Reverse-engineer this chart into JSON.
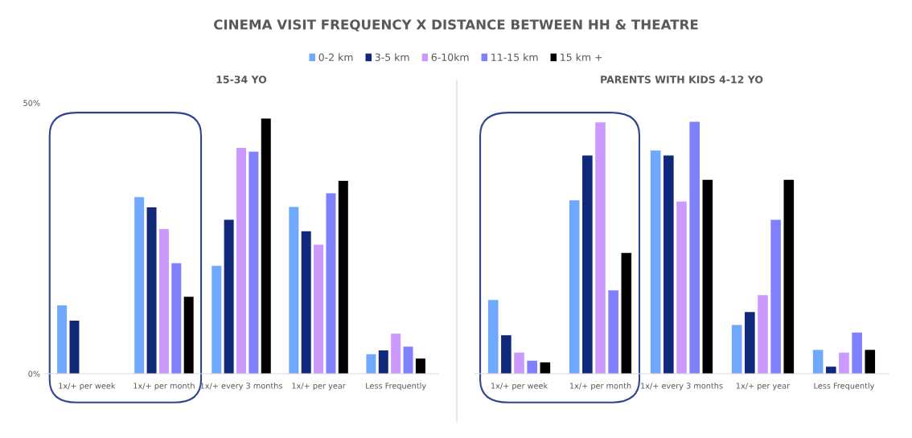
{
  "chart_data": [
    {
      "type": "bar",
      "title": "CINEMA VISIT FREQUENCY X DISTANCE BETWEEN HH & THEATRE",
      "subtitle": "15-34 YO",
      "categories": [
        "1x/+ per week",
        "1x/+ per month",
        "1x/+ every 3 months",
        "1x/+ per year",
        "Less Frequently"
      ],
      "series": [
        {
          "name": "0-2 km",
          "color": "#6fa8fd",
          "values": [
            12.6,
            32.6,
            19.9,
            30.8,
            3.6
          ]
        },
        {
          "name": "3-5 km",
          "color": "#10287a",
          "values": [
            9.8,
            30.7,
            28.4,
            26.3,
            4.3
          ]
        },
        {
          "name": "6-10km",
          "color": "#cc99ff",
          "values": [
            null,
            26.7,
            41.7,
            23.8,
            7.4
          ]
        },
        {
          "name": "11-15 km",
          "color": "#8080ff",
          "values": [
            null,
            20.4,
            41.0,
            33.3,
            5.0
          ]
        },
        {
          "name": "15 km +",
          "color": "#000000",
          "values": [
            null,
            14.2,
            47.1,
            35.6,
            2.8
          ]
        }
      ],
      "ylim": [
        0,
        50
      ],
      "yticks": [
        {
          "value": 0,
          "label": "0%"
        },
        {
          "value": 50,
          "label": "50%"
        }
      ],
      "grid": false,
      "legend": "top"
    },
    {
      "type": "bar",
      "subtitle": "PARENTS WITH KIDS 4-12 YO",
      "categories": [
        "1x/+ per week",
        "1x/+ per month",
        "1x/+ every 3 months",
        "1x/+ per year",
        "Less Frequently"
      ],
      "series": [
        {
          "color": "#6fa8fd",
          "values": [
            13.6,
            32.0,
            41.2,
            9.0,
            4.4
          ]
        },
        {
          "color": "#10287a",
          "values": [
            7.1,
            40.3,
            40.3,
            11.4,
            1.3
          ]
        },
        {
          "color": "#cc99ff",
          "values": [
            3.9,
            46.4,
            31.8,
            14.5,
            3.9
          ]
        },
        {
          "color": "#8080ff",
          "values": [
            2.4,
            15.4,
            46.5,
            28.4,
            7.6
          ]
        },
        {
          "color": "#000000",
          "values": [
            2.1,
            22.3,
            35.8,
            35.8,
            4.4
          ]
        }
      ],
      "ylim": [
        0,
        50
      ],
      "tick_labels": "x",
      "grid": false
    }
  ]
}
